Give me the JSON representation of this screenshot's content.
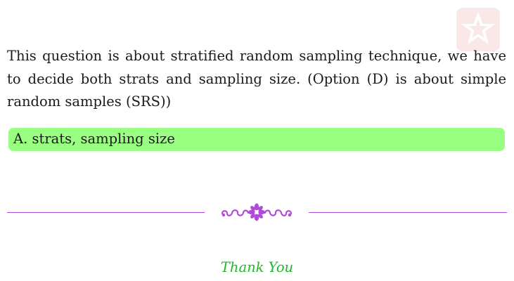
{
  "explanation": {
    "text": "This question is about stratified random sampling technique, we have to decide both strats and sampling size.  (Option (D) is about simple random samples (SRS))"
  },
  "answer": {
    "text": "A. strats, sampling size",
    "highlight_color": "#99ff80"
  },
  "divider": {
    "color": "#b04ad8",
    "ornament_icon": "floral-flourish-icon"
  },
  "closing": {
    "text": "Thank You",
    "color": "#1eb82b"
  },
  "watermark": {
    "icon": "star-logo-icon",
    "color": "#e05a5a"
  }
}
